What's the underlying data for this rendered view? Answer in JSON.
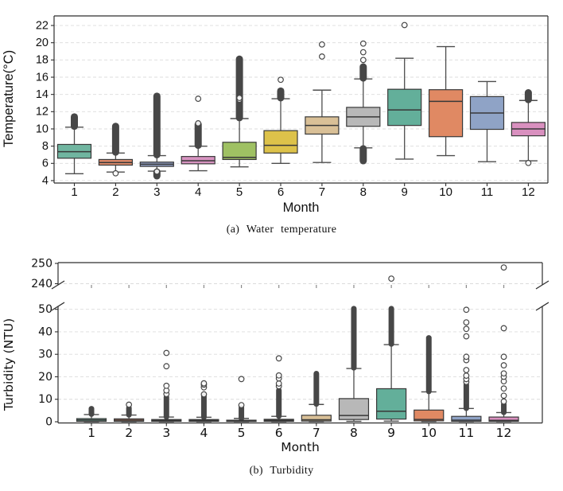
{
  "page": {
    "background": "#ffffff"
  },
  "captions": {
    "a": "(a) Water temperature",
    "b": "(b) Turbidity"
  },
  "style": {
    "spine_color": "#2e2e2e",
    "grid_color": "#dcdcdc",
    "whisker_color": "#4d4d4d",
    "box_edge_color": "#383838",
    "flier_color": "#474747",
    "text_color": "#111111"
  },
  "chart_data": [
    {
      "id": "water_temperature",
      "type": "box",
      "caption": "(a) Water temperature",
      "xlabel": "Month",
      "ylabel": "Temperature(°C)",
      "x_categories": [
        "1",
        "2",
        "3",
        "4",
        "5",
        "6",
        "7",
        "8",
        "9",
        "10",
        "11",
        "12"
      ],
      "yticks": [
        4,
        6,
        8,
        10,
        12,
        14,
        16,
        18,
        20,
        22
      ],
      "ylim": [
        3.7,
        23.1
      ],
      "grid": "horizontal-dashed",
      "legend": "none",
      "boxes": [
        {
          "month": "1",
          "color": "#70b5a0",
          "whisker_low": 4.8,
          "q1": 6.6,
          "median": 7.35,
          "q3": 8.2,
          "whisker_high": 10.2,
          "outlier_runs": [
            [
              10.3,
              11.4
            ]
          ],
          "outliers": []
        },
        {
          "month": "2",
          "color": "#dd8a6a",
          "whisker_low": 5.0,
          "q1": 5.8,
          "median": 6.1,
          "q3": 6.45,
          "whisker_high": 7.2,
          "outlier_runs": [
            [
              7.3,
              10.3
            ]
          ],
          "outliers": [
            4.85
          ]
        },
        {
          "month": "3",
          "color": "#929fc4",
          "whisker_low": 5.1,
          "q1": 5.65,
          "median": 5.9,
          "q3": 6.15,
          "whisker_high": 6.9,
          "outlier_runs": [
            [
              7.0,
              13.8
            ],
            [
              4.55,
              5.0
            ]
          ],
          "outliers": [
            5.05
          ]
        },
        {
          "month": "4",
          "color": "#d793c0",
          "whisker_low": 5.15,
          "q1": 5.95,
          "median": 6.3,
          "q3": 6.8,
          "whisker_high": 8.0,
          "outlier_runs": [
            [
              8.1,
              10.5
            ]
          ],
          "outliers": [
            10.65,
            13.5
          ]
        },
        {
          "month": "5",
          "color": "#9fc163",
          "whisker_low": 5.6,
          "q1": 6.45,
          "median": 6.7,
          "q3": 8.45,
          "whisker_high": 11.2,
          "outlier_runs": [
            [
              11.3,
              18.1
            ]
          ],
          "outliers": [
            13.4,
            13.6
          ]
        },
        {
          "month": "6",
          "color": "#ddc24a",
          "whisker_low": 6.0,
          "q1": 7.2,
          "median": 8.1,
          "q3": 9.8,
          "whisker_high": 13.5,
          "outlier_runs": [
            [
              13.6,
              14.4
            ]
          ],
          "outliers": [
            15.7
          ]
        },
        {
          "month": "7",
          "color": "#d9c097",
          "whisker_low": 6.1,
          "q1": 9.4,
          "median": 10.4,
          "q3": 11.4,
          "whisker_high": 14.5,
          "outlier_runs": [],
          "outliers": [
            18.4,
            19.8
          ]
        },
        {
          "month": "8",
          "color": "#b8b8b8",
          "whisker_low": 7.8,
          "q1": 10.3,
          "median": 11.4,
          "q3": 12.5,
          "whisker_high": 15.8,
          "outlier_runs": [
            [
              15.9,
              17.2
            ],
            [
              6.3,
              7.7
            ]
          ],
          "outliers": [
            18.0,
            18.9,
            19.9
          ]
        },
        {
          "month": "9",
          "color": "#63af9a",
          "whisker_low": 6.5,
          "q1": 10.4,
          "median": 12.2,
          "q3": 14.6,
          "whisker_high": 18.2,
          "outlier_runs": [],
          "outliers": [
            22.05
          ]
        },
        {
          "month": "10",
          "color": "#e08963",
          "whisker_low": 6.9,
          "q1": 9.1,
          "median": 13.2,
          "q3": 14.55,
          "whisker_high": 19.55,
          "outlier_runs": [],
          "outliers": []
        },
        {
          "month": "11",
          "color": "#8fa3c6",
          "whisker_low": 6.2,
          "q1": 9.95,
          "median": 11.85,
          "q3": 13.75,
          "whisker_high": 15.5,
          "outlier_runs": [],
          "outliers": []
        },
        {
          "month": "12",
          "color": "#d990bf",
          "whisker_low": 6.3,
          "q1": 9.2,
          "median": 10.0,
          "q3": 10.75,
          "whisker_high": 13.3,
          "outlier_runs": [
            [
              13.4,
              14.2
            ]
          ],
          "outliers": [
            6.05
          ]
        }
      ]
    },
    {
      "id": "turbidity",
      "type": "box",
      "caption": "(b) Turbidity",
      "xlabel": "Month",
      "ylabel": "Turbidity (NTU)",
      "x_categories": [
        "1",
        "2",
        "3",
        "4",
        "5",
        "6",
        "7",
        "8",
        "9",
        "10",
        "11",
        "12"
      ],
      "axis_break": {
        "lower_range": [
          0,
          50
        ],
        "upper_range": [
          240,
          250
        ]
      },
      "yticks_lower": [
        0,
        10,
        20,
        30,
        40,
        50
      ],
      "yticks_upper": [
        240,
        250
      ],
      "grid": "horizontal-dashed",
      "legend": "none",
      "boxes": [
        {
          "month": "1",
          "color": "#70b5a0",
          "whisker_low": 0.05,
          "q1": 0.2,
          "median": 0.8,
          "q3": 1.4,
          "whisker_high": 3.2,
          "outlier_runs": [
            [
              3.4,
              5.8
            ]
          ],
          "outliers": []
        },
        {
          "month": "2",
          "color": "#dd8a6a",
          "whisker_low": 0.05,
          "q1": 0.2,
          "median": 0.7,
          "q3": 1.3,
          "whisker_high": 3.0,
          "outlier_runs": [
            [
              3.1,
              6.1
            ]
          ],
          "outliers": [
            7.6
          ]
        },
        {
          "month": "3",
          "color": "#929fc4",
          "whisker_low": 0.05,
          "q1": 0.2,
          "median": 0.6,
          "q3": 1.0,
          "whisker_high": 2.1,
          "outlier_runs": [
            [
              2.2,
              11.0
            ]
          ],
          "outliers": [
            12.3,
            13.9,
            16.0,
            24.7,
            30.6
          ]
        },
        {
          "month": "4",
          "color": "#d793c0",
          "whisker_low": 0.05,
          "q1": 0.2,
          "median": 0.6,
          "q3": 1.0,
          "whisker_high": 2.0,
          "outlier_runs": [
            [
              2.1,
              11.6
            ]
          ],
          "outliers": [
            12.2,
            15.3,
            16.5,
            17.1
          ]
        },
        {
          "month": "5",
          "color": "#9fc163",
          "whisker_low": 0.05,
          "q1": 0.15,
          "median": 0.4,
          "q3": 0.7,
          "whisker_high": 1.5,
          "outlier_runs": [
            [
              1.6,
              6.3
            ]
          ],
          "outliers": [
            7.4,
            19.0
          ]
        },
        {
          "month": "6",
          "color": "#ddc24a",
          "whisker_low": 0.05,
          "q1": 0.2,
          "median": 0.6,
          "q3": 1.1,
          "whisker_high": 2.4,
          "outlier_runs": [
            [
              2.5,
              14.0
            ]
          ],
          "outliers": [
            15.8,
            17.0,
            19.3,
            20.6,
            28.2
          ]
        },
        {
          "month": "7",
          "color": "#d9c097",
          "whisker_low": 0.1,
          "q1": 0.3,
          "median": 0.9,
          "q3": 2.9,
          "whisker_high": 7.7,
          "outlier_runs": [
            [
              7.9,
              21.4
            ]
          ],
          "outliers": []
        },
        {
          "month": "8",
          "color": "#b8b8b8",
          "whisker_low": 0.2,
          "q1": 1.0,
          "median": 2.8,
          "q3": 10.3,
          "whisker_high": 23.7,
          "outlier_runs": [
            [
              24.0,
              50.3
            ]
          ],
          "outliers": []
        },
        {
          "month": "9",
          "color": "#63af9a",
          "whisker_low": 0.3,
          "q1": 1.2,
          "median": 4.7,
          "q3": 14.7,
          "whisker_high": 34.3,
          "outlier_runs": [
            [
              34.6,
              50.3
            ]
          ],
          "outliers": [
            242.5
          ]
        },
        {
          "month": "10",
          "color": "#e08963",
          "whisker_low": 0.1,
          "q1": 0.4,
          "median": 1.0,
          "q3": 5.2,
          "whisker_high": 13.3,
          "outlier_runs": [
            [
              13.5,
              37.3
            ]
          ],
          "outliers": []
        },
        {
          "month": "11",
          "color": "#8fa3c6",
          "whisker_low": 0.1,
          "q1": 0.2,
          "median": 0.7,
          "q3": 2.4,
          "whisker_high": 5.9,
          "outlier_runs": [
            [
              6.0,
              16.5
            ]
          ],
          "outliers": [
            17.7,
            19.0,
            20.5,
            23.0,
            27.4,
            28.9,
            38.0,
            41.3,
            44.2,
            49.8
          ]
        },
        {
          "month": "12",
          "color": "#d990bf",
          "whisker_low": 0.1,
          "q1": 0.2,
          "median": 0.6,
          "q3": 2.1,
          "whisker_high": 4.1,
          "outlier_runs": [
            [
              4.2,
              7.7
            ]
          ],
          "outliers": [
            9.0,
            11.6,
            14.8,
            18.0,
            20.0,
            21.5,
            25.1,
            28.9,
            41.6,
            248.0
          ]
        }
      ]
    }
  ]
}
